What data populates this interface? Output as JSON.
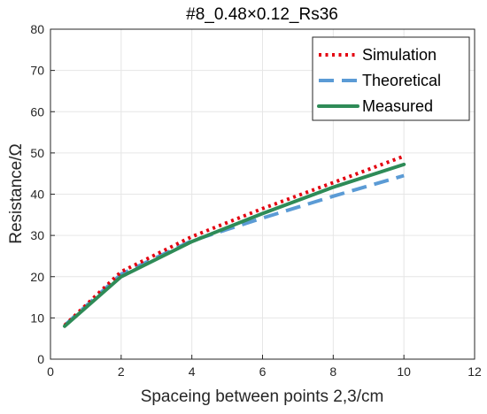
{
  "chart_data": {
    "type": "line",
    "title": "#8_0.48×0.12_Rs36",
    "xlabel": "Spaceing between points 2,3/cm",
    "ylabel": "Resistance/Ω",
    "xlim": [
      0,
      12
    ],
    "ylim": [
      0,
      80
    ],
    "xticks": [
      "0",
      "2",
      "4",
      "6",
      "8",
      "10",
      "12"
    ],
    "yticks": [
      "0",
      "10",
      "20",
      "30",
      "40",
      "50",
      "60",
      "70",
      "80"
    ],
    "grid": true,
    "legend_position": "top-right",
    "series": [
      {
        "name": "Simulation",
        "color": "#e3000f",
        "style": "dotted",
        "x": [
          0.4,
          2,
          4,
          6,
          8,
          10
        ],
        "y": [
          8.2,
          21.2,
          29.7,
          36.5,
          42.8,
          49.2
        ]
      },
      {
        "name": "Theoretical",
        "color": "#5b9bd5",
        "style": "dashed",
        "x": [
          0.4,
          2,
          4,
          6,
          8,
          10
        ],
        "y": [
          8.2,
          20.6,
          28.7,
          34.2,
          39.5,
          44.5
        ]
      },
      {
        "name": "Measured",
        "color": "#2e8b57",
        "style": "solid",
        "x": [
          0.4,
          2,
          4,
          6,
          8,
          10
        ],
        "y": [
          8.0,
          20.0,
          28.5,
          35.3,
          41.7,
          47.2
        ]
      }
    ]
  }
}
